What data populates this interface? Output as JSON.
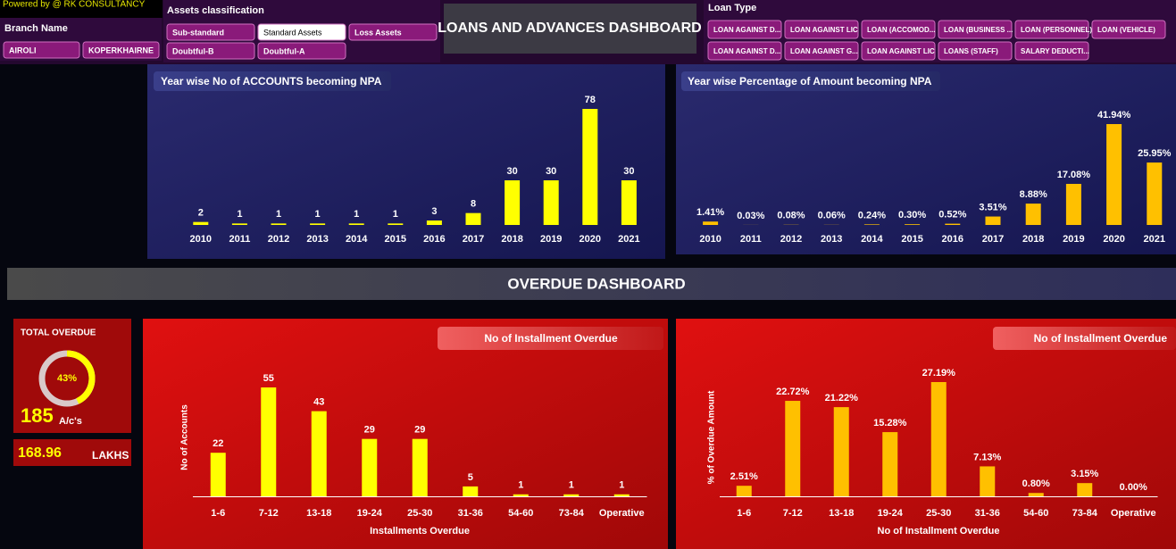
{
  "header": {
    "powered_by": "Powered by @ RK CONSULTANCY",
    "title": "LOANS AND ADVANCES DASHBOARD",
    "section_title": "OVERDUE DASHBOARD"
  },
  "slicers": {
    "branch": {
      "title": "Branch Name",
      "items": [
        "AIROLI",
        "KOPERKHAIRNE"
      ]
    },
    "assets": {
      "title": "Assets classification",
      "items": [
        "Sub-standard",
        "Standard Assets",
        "Loss Assets",
        "Doubtful-B",
        "Doubtful-A"
      ],
      "selected": "Standard Assets"
    },
    "loan_type": {
      "title": "Loan Type",
      "items": [
        "LOAN AGAINST D...",
        "LOAN AGAINST LIC",
        "LOAN (ACCOMOD...",
        "LOAN (BUSINESS ...",
        "LOAN (PERSONNEL)",
        "LOAN (VEHICLE)",
        "LOAN AGAINST D...",
        "LOAN AGAINST G...",
        "LOAN AGAINST LIC",
        "LOANS (STAFF)",
        "SALARY DEDUCTI..."
      ]
    }
  },
  "kpi": {
    "title": "TOTAL OVERDUE",
    "gauge": {
      "value": 43,
      "label": "43%"
    },
    "accounts": "185",
    "accounts_unit": "A/c's",
    "amount": "168.96",
    "amount_unit": "LAKHS"
  },
  "chart_data": [
    {
      "type": "bar",
      "title": "Year wise No of ACCOUNTS becoming NPA",
      "color": "#ffff00",
      "categories": [
        "2010",
        "2011",
        "2012",
        "2013",
        "2014",
        "2015",
        "2016",
        "2017",
        "2018",
        "2019",
        "2020",
        "2021"
      ],
      "values": [
        2,
        1,
        1,
        1,
        1,
        1,
        3,
        8,
        30,
        30,
        78,
        30
      ]
    },
    {
      "type": "bar",
      "title": "Year wise Percentage of Amount becoming NPA",
      "color": "#ffc000",
      "categories": [
        "2010",
        "2011",
        "2012",
        "2013",
        "2014",
        "2015",
        "2016",
        "2017",
        "2018",
        "2019",
        "2020",
        "2021"
      ],
      "values": [
        1.41,
        0.03,
        0.08,
        0.06,
        0.24,
        0.3,
        0.52,
        3.51,
        8.88,
        17.08,
        41.94,
        25.95
      ],
      "value_labels": [
        "1.41%",
        "0.03%",
        "0.08%",
        "0.06%",
        "0.24%",
        "0.30%",
        "0.52%",
        "3.51%",
        "8.88%",
        "17.08%",
        "41.94%",
        "25.95%"
      ]
    },
    {
      "type": "bar",
      "title": "No of Installment Overdue",
      "color": "#ffff00",
      "x_label": "Installments Overdue",
      "y_label": "No of Accounts",
      "categories": [
        "1-6",
        "7-12",
        "13-18",
        "19-24",
        "25-30",
        "31-36",
        "54-60",
        "73-84",
        "Operative"
      ],
      "values": [
        22,
        55,
        43,
        29,
        29,
        5,
        1,
        1,
        1
      ]
    },
    {
      "type": "bar",
      "title": "No of Installment Overdue",
      "color": "#ffc000",
      "x_label": "No of Installment Overdue",
      "y_label": "% of Overdue Amount",
      "categories": [
        "1-6",
        "7-12",
        "13-18",
        "19-24",
        "25-30",
        "31-36",
        "54-60",
        "73-84",
        "Operative"
      ],
      "values": [
        2.51,
        22.72,
        21.22,
        15.28,
        27.19,
        7.13,
        0.8,
        3.15,
        0.0
      ],
      "value_labels": [
        "2.51%",
        "22.72%",
        "21.22%",
        "15.28%",
        "27.19%",
        "7.13%",
        "0.80%",
        "3.15%",
        "0.00%"
      ]
    }
  ]
}
